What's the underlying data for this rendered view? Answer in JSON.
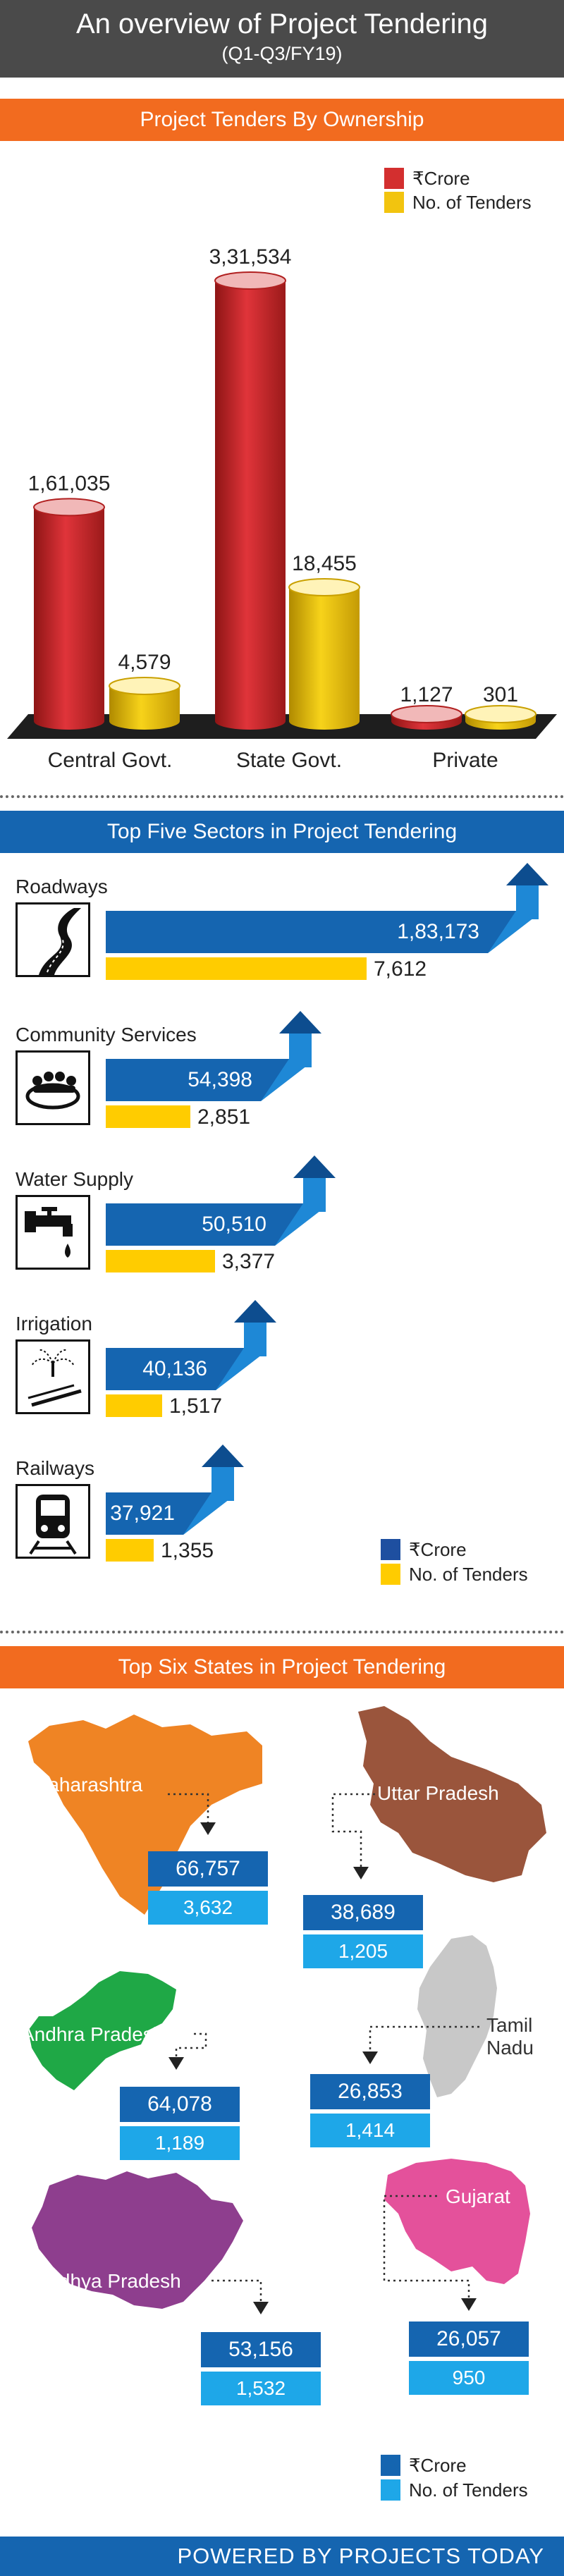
{
  "header": {
    "title": "An overview of Project Tendering",
    "subtitle": "(Q1-Q3/FY19)"
  },
  "colors": {
    "crore_red": "#d32f2f",
    "tenders_gold": "#f2c40f",
    "blue": "#1565b0",
    "light_blue": "#1ea7e8",
    "yellow": "#ffcc00",
    "orange": "#f26b1f"
  },
  "ownership": {
    "heading": "Project Tenders By Ownership",
    "legend": {
      "crore": "₹Crore",
      "tenders": "No. of Tenders"
    },
    "chart_data": {
      "type": "bar",
      "title": "Project Tenders By Ownership",
      "categories": [
        "Central Govt.",
        "State Govt.",
        "Private"
      ],
      "series": [
        {
          "name": "₹Crore",
          "values": [
            161035,
            331534,
            1127
          ],
          "labels": [
            "1,61,035",
            "3,31,534",
            "1,127"
          ]
        },
        {
          "name": "No. of Tenders",
          "values": [
            4579,
            18455,
            301
          ],
          "labels": [
            "4,579",
            "18,455",
            "301"
          ]
        }
      ]
    }
  },
  "sectors": {
    "heading": "Top Five Sectors in Project Tendering",
    "legend": {
      "crore": "₹Crore",
      "tenders": "No. of Tenders"
    },
    "chart_data": {
      "type": "bar",
      "title": "Top Five Sectors in Project Tendering",
      "categories": [
        "Roadways",
        "Community Services",
        "Water Supply",
        "Irrigation",
        "Railways"
      ],
      "series": [
        {
          "name": "₹Crore",
          "values": [
            183173,
            54398,
            50510,
            40136,
            37921
          ],
          "labels": [
            "1,83,173",
            "54,398",
            "50,510",
            "40,136",
            "37,921"
          ]
        },
        {
          "name": "No. of Tenders",
          "values": [
            7612,
            2851,
            3377,
            1517,
            1355
          ],
          "labels": [
            "7,612",
            "2,851",
            "3,377",
            "1,517",
            "1,355"
          ]
        }
      ],
      "icons": [
        "road-icon",
        "community-icon",
        "water-tap-icon",
        "irrigation-icon",
        "train-icon"
      ]
    }
  },
  "states": {
    "heading": "Top Six States in Project Tendering",
    "legend": {
      "crore": "₹Crore",
      "tenders": "No. of Tenders"
    },
    "chart_data": {
      "type": "table",
      "title": "Top Six States in Project Tendering",
      "categories": [
        "Maharashtra",
        "Uttar Pradesh",
        "Andhra Pradesh",
        "Tamil Nadu",
        "Madhya Pradesh",
        "Gujarat"
      ],
      "series": [
        {
          "name": "₹Crore",
          "values": [
            66757,
            38689,
            64078,
            26853,
            53156,
            26057
          ],
          "labels": [
            "66,757",
            "38,689",
            "64,078",
            "26,853",
            "53,156",
            "26,057"
          ]
        },
        {
          "name": "No. of Tenders",
          "values": [
            3632,
            1205,
            1189,
            1414,
            1532,
            950
          ],
          "labels": [
            "3,632",
            "1,205",
            "1,189",
            "1,414",
            "1,532",
            "950"
          ]
        }
      ],
      "map_colors": [
        "#ef8424",
        "#9a553c",
        "#1fa846",
        "#c8c8c8",
        "#8e3e8e",
        "#e4519b"
      ]
    }
  },
  "footer": {
    "text": "POWERED BY PROJECTS TODAY"
  }
}
